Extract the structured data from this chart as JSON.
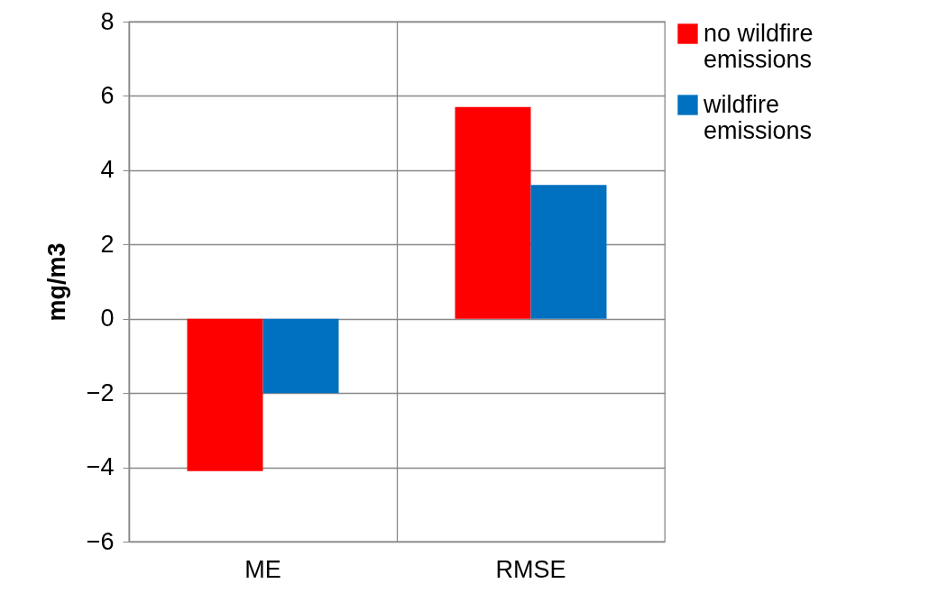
{
  "chart_data": {
    "type": "bar",
    "ylabel": "mg/m3",
    "categories": [
      "ME",
      "RMSE"
    ],
    "series": [
      {
        "name": "no wildfire emissions",
        "color": "#ff0000",
        "values": [
          -4.1,
          5.7
        ]
      },
      {
        "name": "wildfire emissions",
        "color": "#0070c0",
        "values": [
          -2.0,
          3.6
        ]
      }
    ],
    "ylim": [
      -6,
      8
    ],
    "yticks": [
      -6,
      -4,
      -2,
      0,
      2,
      4,
      6,
      8
    ],
    "grid": true,
    "legend": "right"
  }
}
